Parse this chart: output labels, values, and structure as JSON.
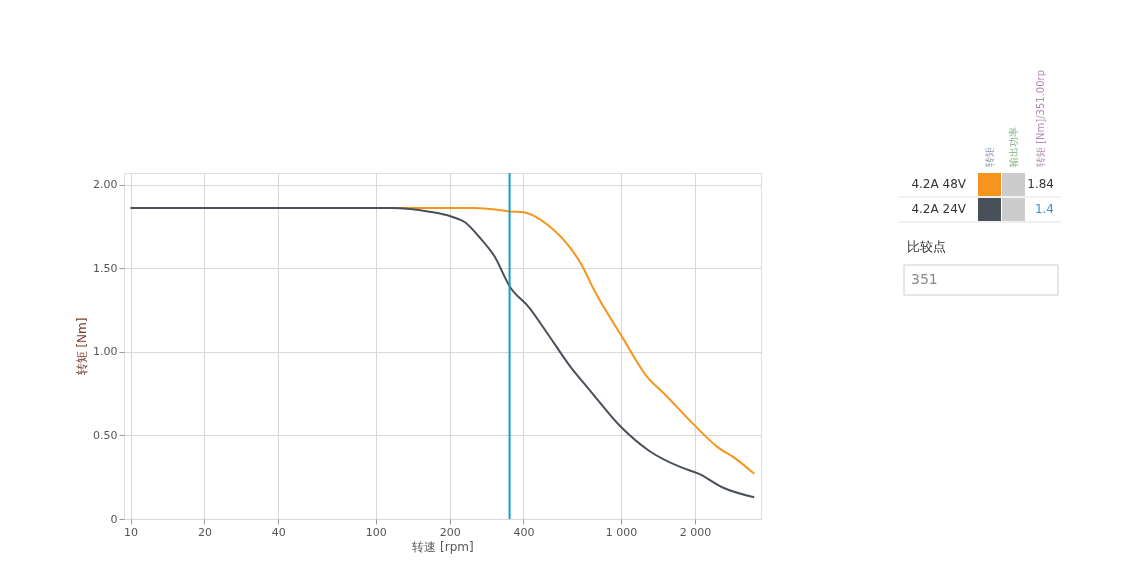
{
  "chart_data": {
    "type": "line",
    "xlabel": "转速 [rpm]",
    "ylabel": "转矩 [Nm]",
    "log": "x",
    "grid": true,
    "legend": "right",
    "marker": "none",
    "line_style": "solid",
    "xlim": [
      9.4,
      3720
    ],
    "ylim": [
      0,
      2.07
    ],
    "xticks": [
      10,
      20,
      40,
      100,
      200,
      400,
      {
        "value": 1000,
        "label": "1 000"
      },
      {
        "value": 2000,
        "label": "2 000"
      }
    ],
    "yticks": [
      0,
      {
        "value": 0.5,
        "label": "0.50"
      },
      {
        "value": 1,
        "label": "1.00"
      },
      {
        "value": 1.5,
        "label": "1.50"
      },
      {
        "value": 2,
        "label": "2.00"
      }
    ],
    "series": [
      {
        "name": "4.2A 48V",
        "color": "#f7941d",
        "x": [
          10,
          100,
          252,
          312,
          351,
          401,
          501,
          622,
          678,
          789,
          1000,
          1295,
          1475,
          1995,
          2474,
          2940,
          3490
        ],
        "values": [
          1.86,
          1.86,
          1.86,
          1.85,
          1.84,
          1.835,
          1.76,
          1.62,
          1.54,
          1.35,
          1.1,
          0.84,
          0.76,
          0.56,
          0.43,
          0.36,
          0.27
        ]
      },
      {
        "name": "4.2A 24V",
        "color": "#48505a",
        "x": [
          10,
          116,
          138,
          163,
          203,
          231,
          263,
          305,
          352,
          422,
          501,
          622,
          740,
          1000,
          1295,
          1750,
          2080,
          2582,
          3490
        ],
        "values": [
          1.86,
          1.86,
          1.854,
          1.84,
          1.81,
          1.775,
          1.69,
          1.57,
          1.39,
          1.265,
          1.11,
          0.91,
          0.776,
          0.55,
          0.41,
          0.31,
          0.27,
          0.19,
          0.13
        ]
      }
    ],
    "ref_lines": [
      {
        "axis": "x",
        "value": 351,
        "color": "#1a9bc9"
      }
    ],
    "annotations": [
      "转矩",
      "输出功率",
      "转矩 [Nm]/351.00rp",
      "比较点",
      "351",
      "1.84",
      "1.4"
    ]
  }
}
